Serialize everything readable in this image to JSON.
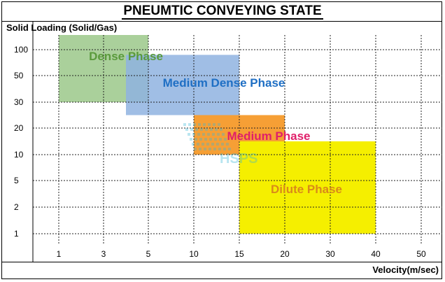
{
  "chart_data": {
    "type": "heatmap",
    "title": "PNEUMTIC CONVEYING STATE",
    "ylabel": "Solid Loading (Solid/Gas)",
    "xlabel": "Velocity(m/sec)",
    "x_ticks": [
      "1",
      "3",
      "5",
      "10",
      "15",
      "20",
      "30",
      "40",
      "50"
    ],
    "y_ticks": [
      "100",
      "50",
      "30",
      "20",
      "10",
      "5",
      "2",
      "1"
    ],
    "grid": true,
    "zones": [
      {
        "name": "Dense Phase",
        "x_range": [
          "1",
          "5"
        ],
        "y_range": [
          "30",
          "100+"
        ],
        "color": "#9bc88a",
        "label_color": "#5a9a3c"
      },
      {
        "name": "Medium Dense Phase",
        "x_range": [
          "4",
          "15"
        ],
        "y_range": [
          "25",
          "90"
        ],
        "color": "#8fb3e0",
        "label_color": "#1f6fc4"
      },
      {
        "name": "Medium Phase",
        "x_range": [
          "10",
          "20"
        ],
        "y_range": [
          "10",
          "25"
        ],
        "color": "#f59a2a",
        "label_color": "#e0206a"
      },
      {
        "name": "Dilute Phase",
        "x_range": [
          "15",
          "40"
        ],
        "y_range": [
          "1",
          "15"
        ],
        "color": "#f5ef00",
        "label_color": "#d98a1a"
      }
    ],
    "watermark": "HSPS"
  }
}
